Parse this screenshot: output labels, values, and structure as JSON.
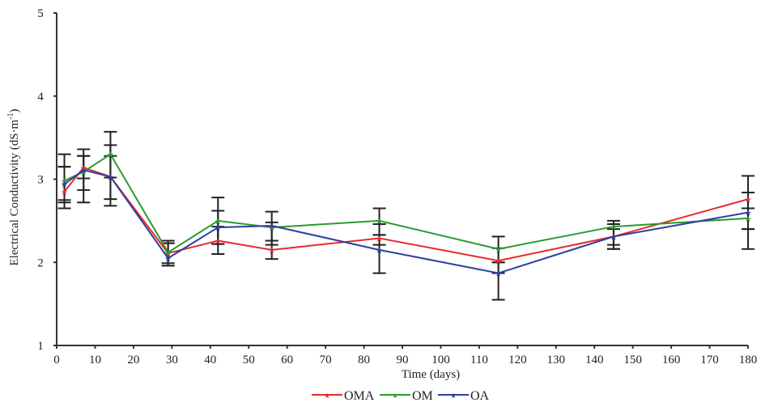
{
  "chart_data": {
    "type": "line",
    "title": "",
    "xlabel": "Time (days)",
    "ylabel": "Electrical Conductivity (dS·m",
    "ylabel_superscript": "-1",
    "ylabel_close": ")",
    "xlim": [
      0,
      180
    ],
    "ylim": [
      1,
      5
    ],
    "xticks": [
      0,
      10,
      20,
      30,
      40,
      50,
      60,
      70,
      80,
      90,
      100,
      110,
      120,
      130,
      140,
      150,
      160,
      170,
      180
    ],
    "yticks": [
      1,
      2,
      3,
      4,
      5
    ],
    "grid": false,
    "legend_position": "bottom-center",
    "x": [
      2,
      7,
      14,
      29,
      42,
      56,
      84,
      115,
      145,
      180
    ],
    "series": [
      {
        "name": "OMA",
        "color": "#e8282b",
        "values": [
          2.85,
          3.14,
          3.03,
          2.11,
          2.26,
          2.15,
          2.29,
          2.02,
          2.31,
          2.76
        ],
        "error_low": [
          2.65,
          2.87,
          2.76,
          1.99,
          2.1,
          2.04,
          2.21,
          1.87,
          2.21,
          2.4
        ],
        "error_high": [
          3.15,
          3.36,
          3.41,
          2.23,
          2.43,
          2.26,
          2.33,
          2.17,
          2.4,
          3.04
        ]
      },
      {
        "name": "OM",
        "color": "#2a9a2e",
        "values": [
          2.98,
          3.09,
          3.3,
          2.12,
          2.5,
          2.42,
          2.5,
          2.16,
          2.43,
          2.53
        ],
        "error_low": [
          2.75,
          2.72,
          3.02,
          1.96,
          2.22,
          2.21,
          2.33,
          2.0,
          2.16,
          2.16
        ],
        "error_high": [
          3.3,
          3.28,
          3.57,
          2.26,
          2.78,
          2.61,
          2.65,
          2.31,
          2.5,
          2.65
        ]
      },
      {
        "name": "OA",
        "color": "#2e3fa0",
        "values": [
          2.94,
          3.11,
          3.03,
          2.05,
          2.42,
          2.44,
          2.15,
          1.87,
          2.31,
          2.6
        ],
        "error_low": [
          2.72,
          3.01,
          2.68,
          1.96,
          2.22,
          2.26,
          1.87,
          1.55,
          2.16,
          2.4
        ],
        "error_high": [
          3.15,
          3.28,
          3.28,
          2.23,
          2.62,
          2.48,
          2.46,
          2.0,
          2.46,
          2.84
        ]
      }
    ]
  }
}
